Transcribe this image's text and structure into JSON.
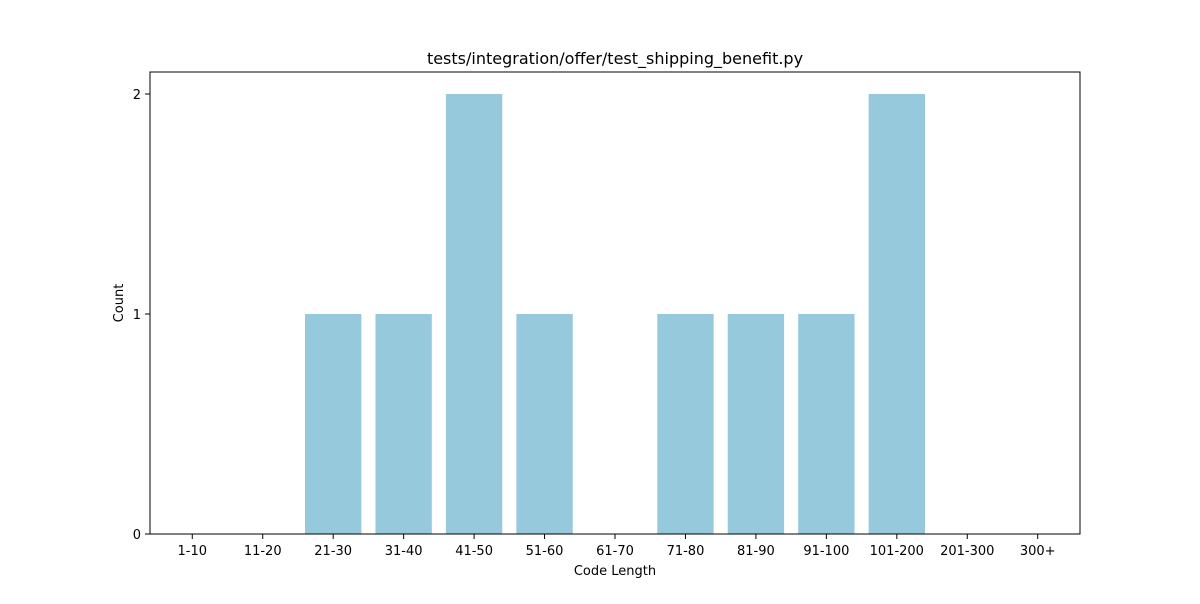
{
  "chart_data": {
    "type": "bar",
    "title": "tests/integration/offer/test_shipping_benefit.py",
    "xlabel": "Code Length",
    "ylabel": "Count",
    "categories": [
      "1-10",
      "11-20",
      "21-30",
      "31-40",
      "41-50",
      "51-60",
      "61-70",
      "71-80",
      "81-90",
      "91-100",
      "101-200",
      "201-300",
      "300+"
    ],
    "values": [
      0,
      0,
      1,
      1,
      2,
      1,
      0,
      1,
      1,
      1,
      2,
      0,
      0
    ],
    "ylim": [
      0,
      2.1
    ],
    "yticks": [
      "0",
      "1",
      "2"
    ],
    "grid": false,
    "bar_color": "#96c9dc"
  }
}
